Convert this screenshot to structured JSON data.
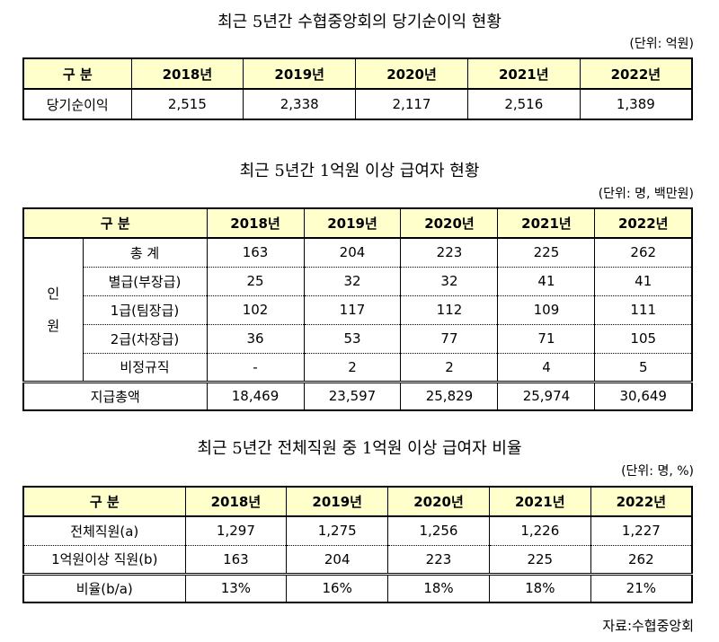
{
  "t1": {
    "title": "최근 5년간 수협중앙회의 당기순이익 현황",
    "unit": "(단위: 억원)",
    "header": [
      "구 분",
      "2018년",
      "2019년",
      "2020년",
      "2021년",
      "2022년"
    ],
    "row": [
      "당기순이익",
      "2,515",
      "2,338",
      "2,117",
      "2,516",
      "1,389"
    ]
  },
  "t2": {
    "title": "최근 5년간 1억원 이상 급여자 현황",
    "unit": "(단위: 명, 백만원)",
    "header": [
      "구 분",
      "2018년",
      "2019년",
      "2020년",
      "2021년",
      "2022년"
    ],
    "group_label": "인원",
    "rows": [
      {
        "label": "총 계",
        "values": [
          "163",
          "204",
          "223",
          "225",
          "262"
        ]
      },
      {
        "label": "별급(부장급)",
        "values": [
          "25",
          "32",
          "32",
          "41",
          "41"
        ]
      },
      {
        "label": "1급(팀장급)",
        "values": [
          "102",
          "117",
          "112",
          "109",
          "111"
        ]
      },
      {
        "label": "2급(차장급)",
        "values": [
          "36",
          "53",
          "77",
          "71",
          "105"
        ]
      },
      {
        "label": "비정규직",
        "values": [
          "-",
          "2",
          "2",
          "4",
          "5"
        ]
      }
    ],
    "total": {
      "label": "지급총액",
      "values": [
        "18,469",
        "23,597",
        "25,829",
        "25,974",
        "30,649"
      ]
    }
  },
  "t3": {
    "title": "최근 5년간 전체직원 중 1억원 이상 급여자 비율",
    "unit": "(단위: 명, %)",
    "header": [
      "구 분",
      "2018년",
      "2019년",
      "2020년",
      "2021년",
      "2022년"
    ],
    "rows": [
      {
        "label": "전체직원(a)",
        "values": [
          "1,297",
          "1,275",
          "1,256",
          "1,226",
          "1,227"
        ]
      },
      {
        "label": "1억원이상 직원(b)",
        "values": [
          "163",
          "204",
          "223",
          "225",
          "262"
        ]
      }
    ],
    "ratio": {
      "label": "비율(b/a)",
      "values": [
        "13%",
        "16%",
        "18%",
        "18%",
        "21%"
      ]
    }
  },
  "source": "자료:수협중앙회"
}
